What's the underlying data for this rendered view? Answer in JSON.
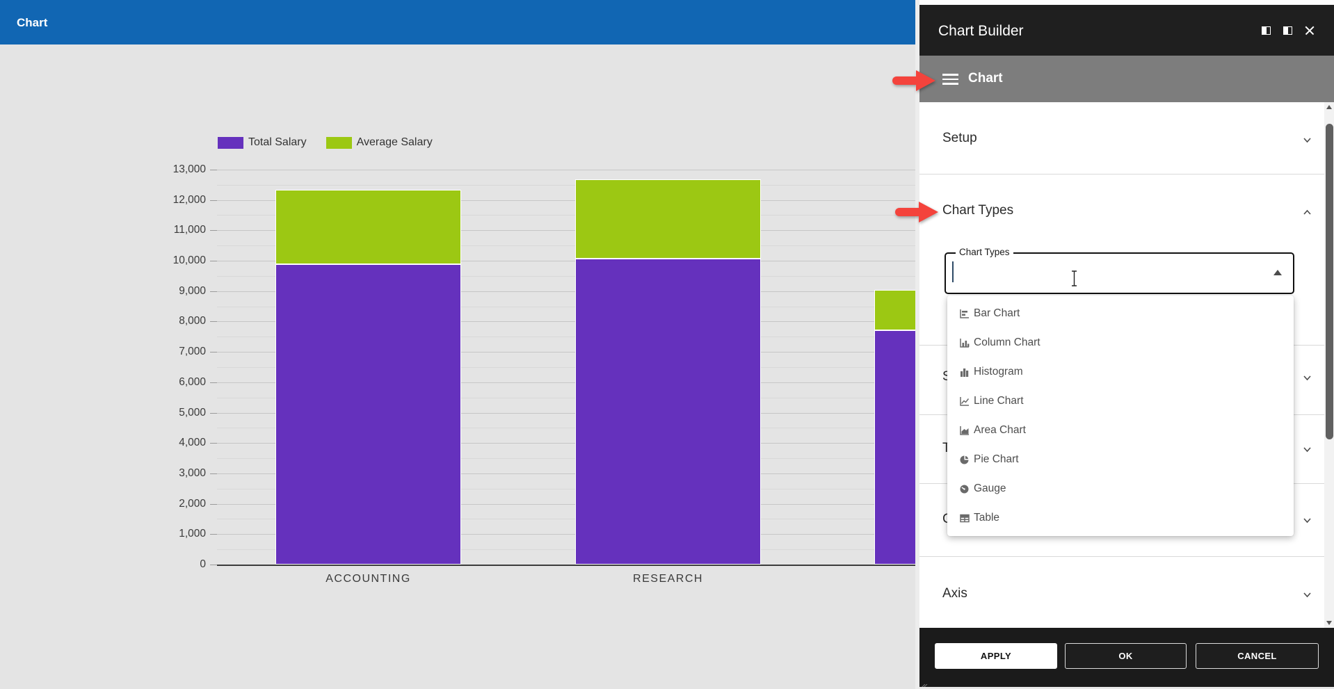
{
  "app": {
    "titlebar": {
      "title": "Chart"
    }
  },
  "chart_data": {
    "type": "bar",
    "stacked": true,
    "title": "",
    "categories": [
      "ACCOUNTING",
      "RESEARCH",
      ""
    ],
    "series": [
      {
        "name": "Total Salary",
        "color": "#6531bd",
        "values": [
          9880,
          10070,
          7710
        ]
      },
      {
        "name": "Average Salary",
        "color": "#9cc813",
        "values": [
          2450,
          2610,
          1330
        ]
      }
    ],
    "ylim": [
      0,
      13000
    ],
    "ytick_step": 1000,
    "y_minor_step": 500,
    "grid": true,
    "legend_position": "top"
  },
  "panel": {
    "title": "Chart Builder",
    "window_icons": [
      {
        "name": "dock-panel-left-icon"
      },
      {
        "name": "dock-panel-right-icon"
      },
      {
        "name": "close-icon"
      }
    ],
    "nav": {
      "label": "Chart"
    },
    "sections": {
      "setup": {
        "label": "Setup",
        "state": "collapsed"
      },
      "chart_types": {
        "label": "Chart Types",
        "state": "expanded"
      },
      "hidden_partial": [
        {
          "label": "S"
        },
        {
          "label": "T"
        },
        {
          "label": "C"
        }
      ],
      "axis": {
        "label": "Axis",
        "state": "collapsed"
      }
    },
    "chart_types_field": {
      "label": "Chart Types",
      "value": ""
    },
    "dropdown": {
      "items": [
        {
          "label": "Bar Chart",
          "icon": "bar-chart-icon"
        },
        {
          "label": "Column Chart",
          "icon": "column-chart-icon"
        },
        {
          "label": "Histogram",
          "icon": "histogram-icon"
        },
        {
          "label": "Line Chart",
          "icon": "line-chart-icon"
        },
        {
          "label": "Area Chart",
          "icon": "area-chart-icon"
        },
        {
          "label": "Pie Chart",
          "icon": "pie-chart-icon"
        },
        {
          "label": "Gauge",
          "icon": "gauge-icon"
        },
        {
          "label": "Table",
          "icon": "table-icon"
        }
      ]
    },
    "footer": {
      "apply": "APPLY",
      "ok": "OK",
      "cancel": "CANCEL"
    }
  }
}
